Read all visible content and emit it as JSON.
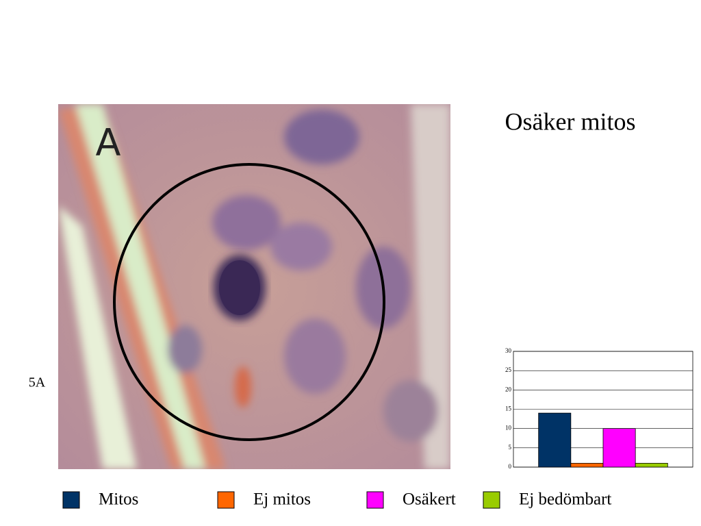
{
  "slide": {
    "title": "Osäker mitos",
    "label": "5A"
  },
  "image": {
    "label": "A"
  },
  "chart_data": {
    "type": "bar",
    "categories": [
      null
    ],
    "series": [
      {
        "name": "Mitos",
        "color": "#003366",
        "values": [
          14
        ]
      },
      {
        "name": "Ej mitos",
        "color": "#ff6600",
        "values": [
          1
        ]
      },
      {
        "name": "Osäkert",
        "color": "#ff00ff",
        "values": [
          10
        ]
      },
      {
        "name": "Ej bedömbart",
        "color": "#99cc00",
        "values": [
          1
        ]
      }
    ],
    "ylim": [
      0,
      30
    ],
    "yticks": [
      0,
      5,
      10,
      15,
      20,
      25,
      30
    ],
    "grid": true,
    "legend": "bottom"
  }
}
